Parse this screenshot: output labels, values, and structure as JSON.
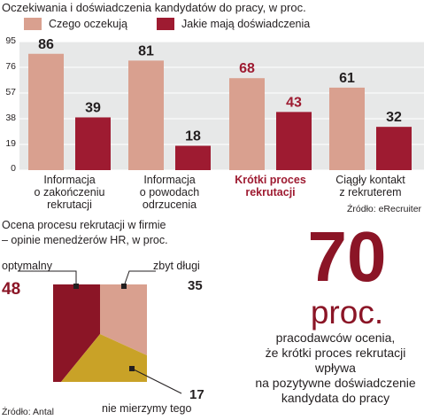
{
  "title": "Oczekiwania i doświadczenia kandydatów do pracy, w proc.",
  "colors": {
    "expect": "#d9a08f",
    "experience": "#9e1b31",
    "accent_text": "#9e1b31",
    "panel": "#e7e8e8",
    "optimal": "#8b1526",
    "too_long": "#d9a08f",
    "not_measured": "#c9a227"
  },
  "source_top": "Źródło: eRecruiter",
  "source_bottom": "Źródło: Antal",
  "chart_data": [
    {
      "type": "bar",
      "title": "Oczekiwania i doświadczenia kandydatów do pracy, w proc.",
      "categories": [
        [
          "Informacja",
          "o zakończeniu",
          "rekrutacji"
        ],
        [
          "Informacja",
          "o powodach",
          "odrzucenia"
        ],
        [
          "Krótki proces",
          "rekrutacji"
        ],
        [
          "Ciągły kontakt",
          "z rekruterem"
        ]
      ],
      "highlight_category_index": 2,
      "series": [
        {
          "name": "Czego oczekują",
          "values": [
            86,
            81,
            68,
            61
          ]
        },
        {
          "name": "Jakie mają doświadczenia",
          "values": [
            39,
            18,
            43,
            32
          ]
        }
      ],
      "yticks": [
        "95",
        "76",
        "57",
        "38",
        "19",
        "0"
      ],
      "ylim": [
        0,
        95
      ],
      "legend": "top"
    },
    {
      "type": "pie",
      "title": "Ocena procesu rekrutacji w firmie – opinie menedżerów HR, w proc.",
      "slices": [
        {
          "name": "optymalny",
          "value": 48
        },
        {
          "name": "zbyt długi",
          "value": 35
        },
        {
          "name": "nie mierzymy tego",
          "value": 17
        }
      ]
    }
  ],
  "pie_title_lines": [
    "Ocena procesu rekrutacji w firmie",
    "– opinie menedżerów HR, w proc."
  ],
  "pie_labels": {
    "optimal_name": "optymalny",
    "optimal_value": "48",
    "too_long_name": "zbyt długi",
    "too_long_value": "35",
    "not_measured_name": "nie mierzymy tego",
    "not_measured_value": "17"
  },
  "callout": {
    "number": "70",
    "unit": "proc.",
    "lines": [
      "pracodawców ocenia,",
      "że krótki proces rekrutacji",
      "wpływa",
      "na pozytywne doświadczenie",
      "kandydata do pracy"
    ]
  }
}
